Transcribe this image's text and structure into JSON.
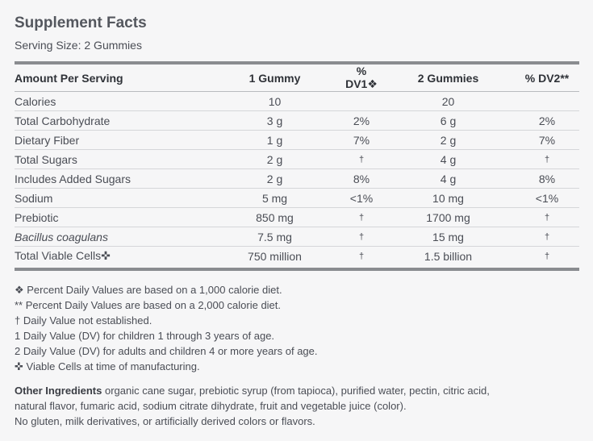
{
  "title": "Supplement Facts",
  "serving_size": "Serving Size: 2 Gummies",
  "table": {
    "headers": [
      "Amount Per Serving",
      "1 Gummy",
      "% DV1❖",
      "2 Gummies",
      "% DV2**"
    ],
    "rows": [
      {
        "name": "Calories",
        "g1": "10",
        "dv1": "",
        "g2": "20",
        "dv2": ""
      },
      {
        "name": "Total Carbohydrate",
        "g1": "3 g",
        "dv1": "2%",
        "g2": "6 g",
        "dv2": "2%"
      },
      {
        "name": "Dietary Fiber",
        "g1": "1 g",
        "dv1": "7%",
        "g2": "2 g",
        "dv2": "7%"
      },
      {
        "name": "Total Sugars",
        "g1": "2 g",
        "dv1": "†",
        "g2": "4 g",
        "dv2": "†"
      },
      {
        "name": "Includes Added Sugars",
        "g1": "2 g",
        "dv1": "8%",
        "g2": "4 g",
        "dv2": "8%"
      },
      {
        "name": "Sodium",
        "g1": "5 mg",
        "dv1": "<1%",
        "g2": "10 mg",
        "dv2": "<1%"
      },
      {
        "name": "Prebiotic",
        "g1": "850 mg",
        "dv1": "†",
        "g2": "1700 mg",
        "dv2": "†"
      },
      {
        "name": "Bacillus coagulans",
        "g1": "7.5 mg",
        "dv1": "†",
        "g2": "15 mg",
        "dv2": "†"
      },
      {
        "name": "Total Viable Cells✜",
        "g1": "750 million",
        "dv1": "†",
        "g2": "1.5 billion",
        "dv2": "†"
      }
    ]
  },
  "footnotes": [
    "❖ Percent Daily Values are based on a 1,000 calorie diet.",
    "** Percent Daily Values are based on a 2,000 calorie diet.",
    "† Daily Value not established.",
    "1 Daily Value (DV) for children 1 through 3 years of age.",
    "2 Daily Value (DV) for adults and children 4 or more years of age.",
    "✜ Viable Cells at time of manufacturing."
  ],
  "ingredients": {
    "label": "Other Ingredients",
    "text": " organic cane sugar, prebiotic syrup (from tapioca), purified water, pectin, citric acid,",
    "line2": "natural flavor, fumaric acid, sodium citrate dihydrate, fruit and vegetable juice (color).",
    "line3": "No gluten, milk derivatives, or artificially derived colors or flavors."
  }
}
